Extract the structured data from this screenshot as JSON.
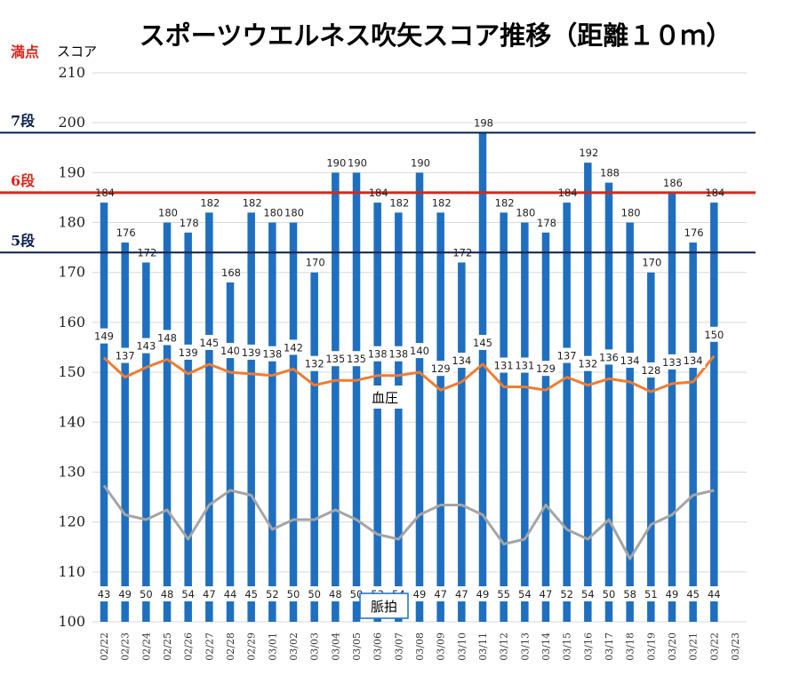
{
  "chart_data": {
    "type": "bar",
    "title": "スポーツウエルネス吹矢スコア推移（距離１０ｍ）",
    "ylabel": "スコア",
    "ylim": [
      100,
      210
    ],
    "yticks": [
      100,
      110,
      120,
      130,
      140,
      150,
      160,
      170,
      180,
      190,
      200,
      210
    ],
    "grid": true,
    "categories": [
      "02/22",
      "02/23",
      "02/24",
      "02/25",
      "02/26",
      "02/27",
      "02/28",
      "02/29",
      "03/01",
      "03/02",
      "03/03",
      "03/04",
      "03/05",
      "03/06",
      "03/07",
      "03/08",
      "03/09",
      "03/10",
      "03/11",
      "03/12",
      "03/13",
      "03/14",
      "03/15",
      "03/16",
      "03/17",
      "03/18",
      "03/19",
      "03/20",
      "03/21",
      "03/22",
      "03/23"
    ],
    "series": [
      {
        "name": "",
        "type": "bar",
        "color": "#1f6fc0",
        "values": [
          184,
          176,
          172,
          180,
          178,
          182,
          168,
          182,
          180,
          180,
          170,
          190,
          190,
          184,
          182,
          190,
          182,
          172,
          198,
          182,
          180,
          178,
          184,
          192,
          188,
          180,
          170,
          186,
          176,
          184,
          null
        ]
      },
      {
        "name": "血圧",
        "type": "line",
        "color": "#ed7d31",
        "values": [
          149,
          137,
          143,
          148,
          139,
          145,
          140,
          139,
          138,
          142,
          132,
          135,
          135,
          138,
          138,
          140,
          129,
          134,
          145,
          131,
          131,
          129,
          137,
          132,
          136,
          134,
          128,
          133,
          134,
          150,
          null
        ]
      },
      {
        "name": "脈拍",
        "type": "line",
        "color": "#a5a5a5",
        "values": [
          43,
          49,
          50,
          48,
          54,
          47,
          44,
          45,
          52,
          50,
          50,
          48,
          50,
          53,
          54,
          49,
          47,
          47,
          49,
          55,
          54,
          47,
          52,
          54,
          50,
          58,
          51,
          49,
          45,
          44,
          null
        ]
      }
    ],
    "reference_lines": [
      {
        "label": "満点",
        "value": 210,
        "color": "#d9261c"
      },
      {
        "label": "7段",
        "value": 198,
        "color": "#0b1f4d"
      },
      {
        "label": "6段",
        "value": 186,
        "color": "#d9261c"
      },
      {
        "label": "5段",
        "value": 174,
        "color": "#0b1f4d"
      }
    ]
  }
}
